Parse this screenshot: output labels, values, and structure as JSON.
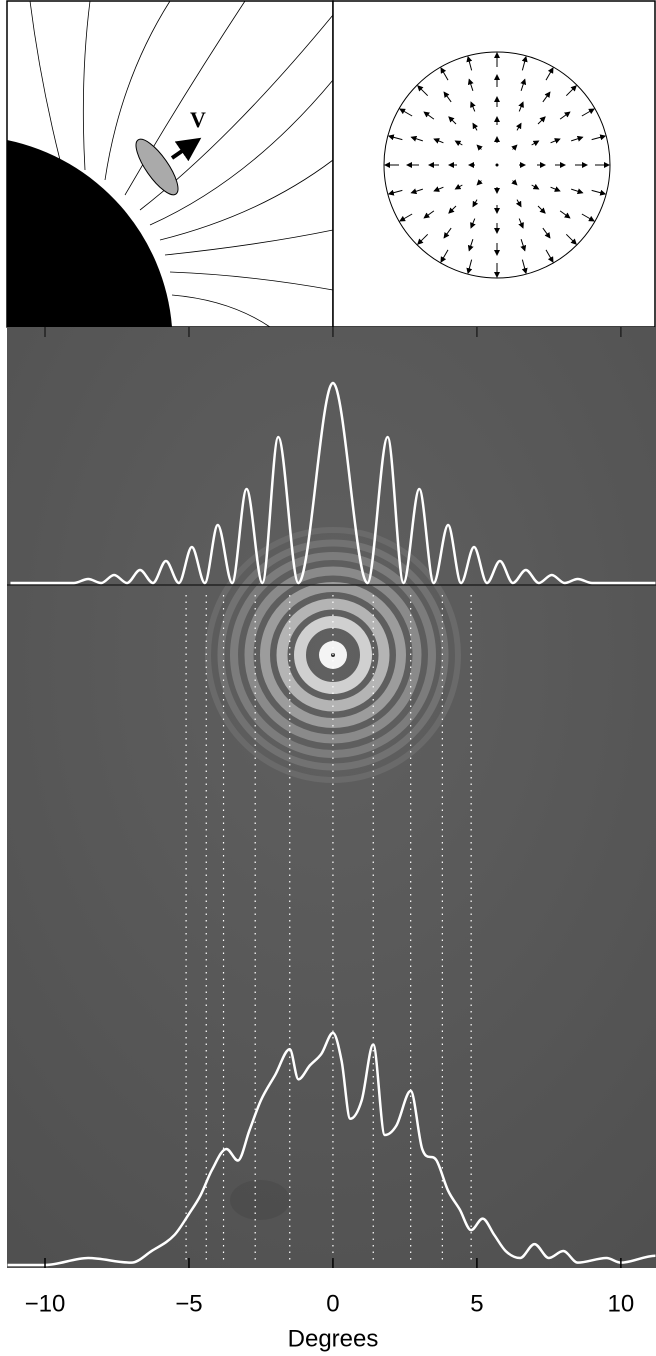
{
  "diagram": {
    "label": "V"
  },
  "chart_data": [
    {
      "type": "line",
      "color": "#ffffff",
      "x": [
        -11.2,
        -9.0,
        -8.5,
        -8.05,
        -7.6,
        -7.15,
        -6.7,
        -6.25,
        -5.8,
        -5.35,
        -4.9,
        -4.45,
        -4.0,
        -3.5,
        -3.0,
        -2.45,
        -1.9,
        -1.2,
        0,
        1.2,
        1.9,
        2.45,
        3.0,
        3.5,
        4.0,
        4.45,
        4.9,
        5.35,
        5.8,
        6.25,
        6.7,
        7.15,
        7.6,
        8.05,
        8.5,
        9.0,
        11.2
      ],
      "values": [
        0,
        0,
        0.02,
        0,
        0.04,
        0,
        0.065,
        0,
        0.11,
        0,
        0.18,
        0,
        0.29,
        0,
        0.47,
        0,
        0.73,
        0,
        1.0,
        0,
        0.73,
        0,
        0.47,
        0,
        0.29,
        0,
        0.18,
        0,
        0.11,
        0,
        0.065,
        0,
        0.04,
        0,
        0.02,
        0,
        0
      ],
      "xlim": [
        -11.32,
        11.22
      ],
      "ylim": [
        -0.01,
        1.28
      ]
    },
    {
      "type": "line",
      "color": "#ffffff",
      "x": [
        -11.3,
        -10,
        -8.5,
        -7,
        -6.3,
        -5.5,
        -5,
        -4.6,
        -4.2,
        -3.7,
        -3.3,
        -2.9,
        -2.5,
        -2,
        -1.5,
        -1.2,
        -0.8,
        -0.4,
        0,
        0.3,
        0.6,
        1.0,
        1.4,
        1.8,
        2.2,
        2.7,
        3.1,
        3.6,
        4.0,
        4.4,
        4.8,
        5.2,
        5.6,
        6.0,
        6.5,
        7.0,
        7.5,
        8.0,
        8.5,
        9.5,
        10,
        11.2
      ],
      "values": [
        0,
        0,
        0.03,
        0.01,
        0.06,
        0.13,
        0.22,
        0.3,
        0.41,
        0.5,
        0.45,
        0.58,
        0.71,
        0.82,
        0.93,
        0.8,
        0.86,
        0.91,
        1.0,
        0.88,
        0.63,
        0.71,
        0.95,
        0.56,
        0.6,
        0.75,
        0.5,
        0.45,
        0.32,
        0.24,
        0.15,
        0.2,
        0.13,
        0.06,
        0.03,
        0.09,
        0.03,
        0.06,
        0.01,
        0.03,
        0.01,
        0.04
      ],
      "reference_x": [
        -5.1,
        -4.4,
        -3.8,
        -2.7,
        -1.5,
        0,
        1.4,
        2.7,
        3.8,
        4.8
      ],
      "xlim": [
        -11.32,
        11.22
      ],
      "ylim": [
        -0.013,
        2.93
      ],
      "xticks": [
        {
          "value": -10,
          "label": "−10"
        },
        {
          "value": -5,
          "label": "−5"
        },
        0,
        5,
        10
      ],
      "xlabel": "Degrees"
    }
  ]
}
